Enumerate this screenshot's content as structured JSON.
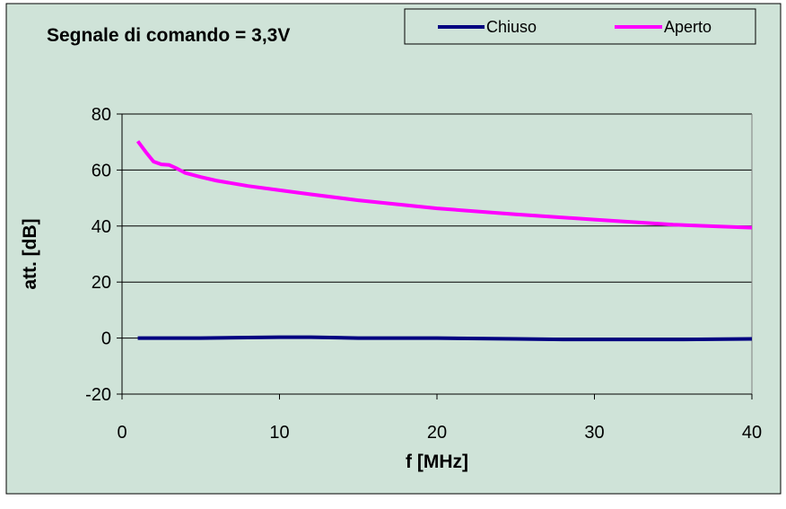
{
  "chart_data": {
    "type": "line",
    "title": "Segnale di comando = 3,3V",
    "xlabel": "f [MHz]",
    "ylabel": "att. [dB]",
    "xlim": [
      0,
      40
    ],
    "ylim": [
      -20,
      80
    ],
    "xticks": [
      "0",
      "10",
      "20",
      "30",
      "40"
    ],
    "yticks": [
      "-20",
      "0",
      "20",
      "40",
      "60",
      "80"
    ],
    "grid": "horizontal",
    "legend_position": "top-right",
    "background_color": "#cfe3d8",
    "series": [
      {
        "name": "Chiuso",
        "color": "#000080",
        "x": [
          1,
          2,
          5,
          8,
          10,
          12,
          15,
          20,
          25,
          28,
          30,
          35,
          40
        ],
        "y": [
          0.0,
          0.0,
          0.0,
          0.2,
          0.3,
          0.3,
          0.0,
          0.0,
          -0.3,
          -0.5,
          -0.5,
          -0.5,
          -0.3
        ]
      },
      {
        "name": "Aperto",
        "color": "#ff00ff",
        "x": [
          1,
          1.5,
          2,
          2.5,
          3,
          3.5,
          4,
          5,
          6,
          8,
          10,
          12,
          15,
          20,
          25,
          30,
          35,
          40
        ],
        "y": [
          70.3,
          66.5,
          63.0,
          62.0,
          61.8,
          60.5,
          59.0,
          57.5,
          56.2,
          54.3,
          52.8,
          51.3,
          49.2,
          46.3,
          44.2,
          42.3,
          40.5,
          39.4
        ]
      }
    ]
  }
}
